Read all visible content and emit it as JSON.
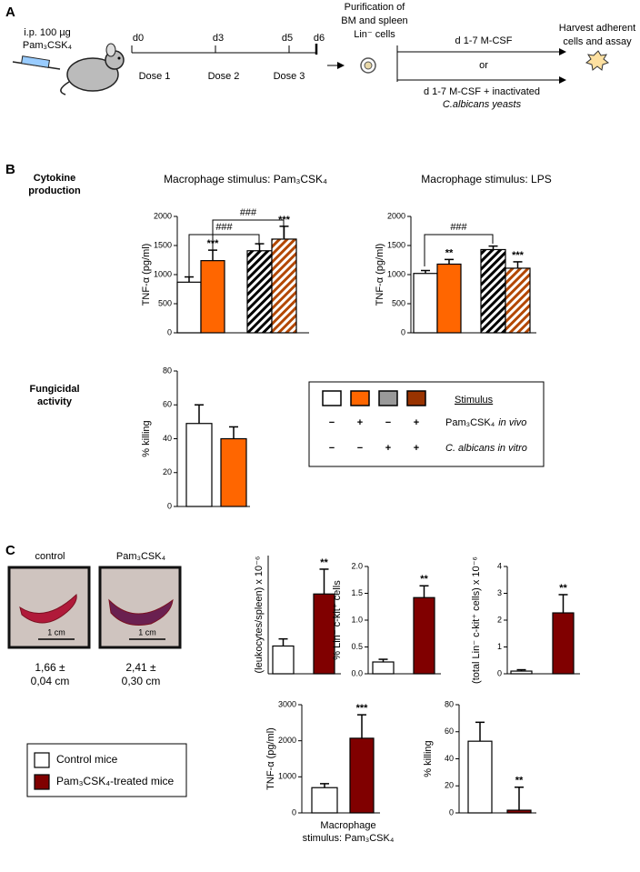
{
  "panel_labels": [
    "A",
    "B",
    "C"
  ],
  "protocol": {
    "injection": [
      "i.p. 100 µg",
      "Pam₃CSK₄"
    ],
    "days": [
      "d0",
      "d3",
      "d5",
      "d6"
    ],
    "doses": [
      "Dose 1",
      "Dose 2",
      "Dose 3"
    ],
    "purification": [
      "Purification of",
      "BM and spleen",
      "Lin⁻ cells"
    ],
    "culture_a": "d 1-7 M-CSF",
    "or": "or",
    "culture_b": [
      "d 1-7 M-CSF + inactivated",
      "C.albicans yeasts"
    ],
    "harvest": [
      "Harvest adherent",
      "cells and assay"
    ]
  },
  "section_labels": [
    [
      "Cytokine",
      "production"
    ],
    [
      "Fungicidal",
      "activity"
    ]
  ],
  "chart_data": [
    {
      "type": "bar",
      "title": "Macrophage stimulus: Pam₃CSK₄",
      "ylabel": "TNF-α (pg/ml)",
      "ylim": [
        0,
        2000
      ],
      "yticks": [
        0,
        500,
        1000,
        1500,
        2000
      ],
      "values": [
        870,
        1240,
        1410,
        1610
      ],
      "errors": [
        90,
        180,
        120,
        220
      ],
      "colors": [
        "#ffffff",
        "#ff6600",
        "#000000",
        "#b34700"
      ],
      "hatched": [
        false,
        false,
        true,
        true
      ],
      "significance": [
        null,
        "***",
        null,
        "***"
      ],
      "comparisons": [
        "###",
        "###"
      ]
    },
    {
      "type": "bar",
      "title": "Macrophage stimulus: LPS",
      "ylabel": "TNF-α (pg/ml)",
      "ylim": [
        0,
        2000
      ],
      "yticks": [
        0,
        500,
        1000,
        1500,
        2000
      ],
      "values": [
        1020,
        1180,
        1430,
        1110
      ],
      "errors": [
        50,
        80,
        60,
        110
      ],
      "colors": [
        "#ffffff",
        "#ff6600",
        "#000000",
        "#b34700"
      ],
      "hatched": [
        false,
        false,
        true,
        true
      ],
      "significance": [
        null,
        "**",
        null,
        "***"
      ],
      "comparisons": [
        "###"
      ]
    },
    {
      "type": "bar",
      "ylabel": "% killing",
      "ylim": [
        0,
        80
      ],
      "yticks": [
        0,
        20,
        40,
        60,
        80
      ],
      "values": [
        49,
        40
      ],
      "errors": [
        11,
        7
      ],
      "colors": [
        "#ffffff",
        "#ff6600"
      ],
      "hatched": [
        false,
        false
      ]
    },
    {
      "type": "bar",
      "ylabel": "(leukocytes/spleen) x 10⁻⁶",
      "ylim": [
        0,
        200
      ],
      "values": [
        47,
        135
      ],
      "errors": [
        12,
        42
      ],
      "colors": [
        "#ffffff",
        "#800000"
      ],
      "hatched": [
        false,
        false
      ],
      "significance": [
        null,
        "**"
      ]
    },
    {
      "type": "bar",
      "ylabel": "% Lin⁻ c-kit⁺ cells",
      "ylim": [
        0,
        2
      ],
      "yticks": [
        {
          "value": 0,
          "label": "0.0"
        },
        {
          "value": 0.5,
          "label": "0.5"
        },
        {
          "value": 1,
          "label": "1.0"
        },
        {
          "value": 1.5,
          "label": "1.5"
        },
        {
          "value": 2,
          "label": "2.0"
        }
      ],
      "values": [
        0.22,
        1.42
      ],
      "errors": [
        0.05,
        0.22
      ],
      "colors": [
        "#ffffff",
        "#800000"
      ],
      "hatched": [
        false,
        false
      ],
      "significance": [
        null,
        "**"
      ]
    },
    {
      "type": "bar",
      "ylabel": "(total Lin⁻ c-kit⁺ cells) x 10⁻⁶",
      "ylim": [
        0,
        4
      ],
      "yticks": [
        0,
        1,
        2,
        3,
        4
      ],
      "values": [
        0.1,
        2.27
      ],
      "errors": [
        0.05,
        0.68
      ],
      "colors": [
        "#ffffff",
        "#800000"
      ],
      "hatched": [
        false,
        false
      ],
      "significance": [
        null,
        "**"
      ]
    },
    {
      "type": "bar",
      "ylabel": "TNF-α (pg/ml)",
      "xlabel": [
        "Macrophage",
        "stimulus:  Pam₃CSK₄"
      ],
      "ylim": [
        0,
        3000
      ],
      "yticks": [
        0,
        1000,
        2000,
        3000
      ],
      "values": [
        700,
        2070
      ],
      "errors": [
        110,
        650
      ],
      "colors": [
        "#ffffff",
        "#800000"
      ],
      "hatched": [
        false,
        false
      ],
      "significance": [
        null,
        "***"
      ]
    },
    {
      "type": "bar",
      "ylabel": "% killing",
      "ylim": [
        0,
        80
      ],
      "yticks": [
        0,
        20,
        40,
        60,
        80
      ],
      "values": [
        53,
        2
      ],
      "errors": [
        14,
        17
      ],
      "colors": [
        "#ffffff",
        "#800000"
      ],
      "hatched": [
        false,
        false
      ],
      "significance": [
        null,
        "**"
      ]
    }
  ],
  "stimulus_legend": {
    "title": "Stimulus",
    "colors": [
      "#ffffff",
      "#ff6600",
      "#999999",
      "#993300"
    ],
    "rows": [
      {
        "signs": [
          "−",
          "+",
          "−",
          "+"
        ],
        "label": "Pam₃CSK₄",
        "qualifier": "in vivo"
      },
      {
        "signs": [
          "−",
          "−",
          "+",
          "+"
        ],
        "label": "C. albicans in vitro"
      }
    ]
  },
  "group_legend": [
    {
      "name": "Control mice",
      "color": "#ffffff"
    },
    {
      "name": "Pam₃CSK₄-treated mice",
      "color": "#800000"
    }
  ],
  "spleens": [
    {
      "label": "control",
      "scale": "1 cm",
      "length": [
        "1,66 ±",
        "0,04 cm"
      ]
    },
    {
      "label": "Pam₃CSK₄",
      "scale": "1 cm",
      "length": [
        "2,41 ±",
        "0,30 cm"
      ]
    }
  ]
}
